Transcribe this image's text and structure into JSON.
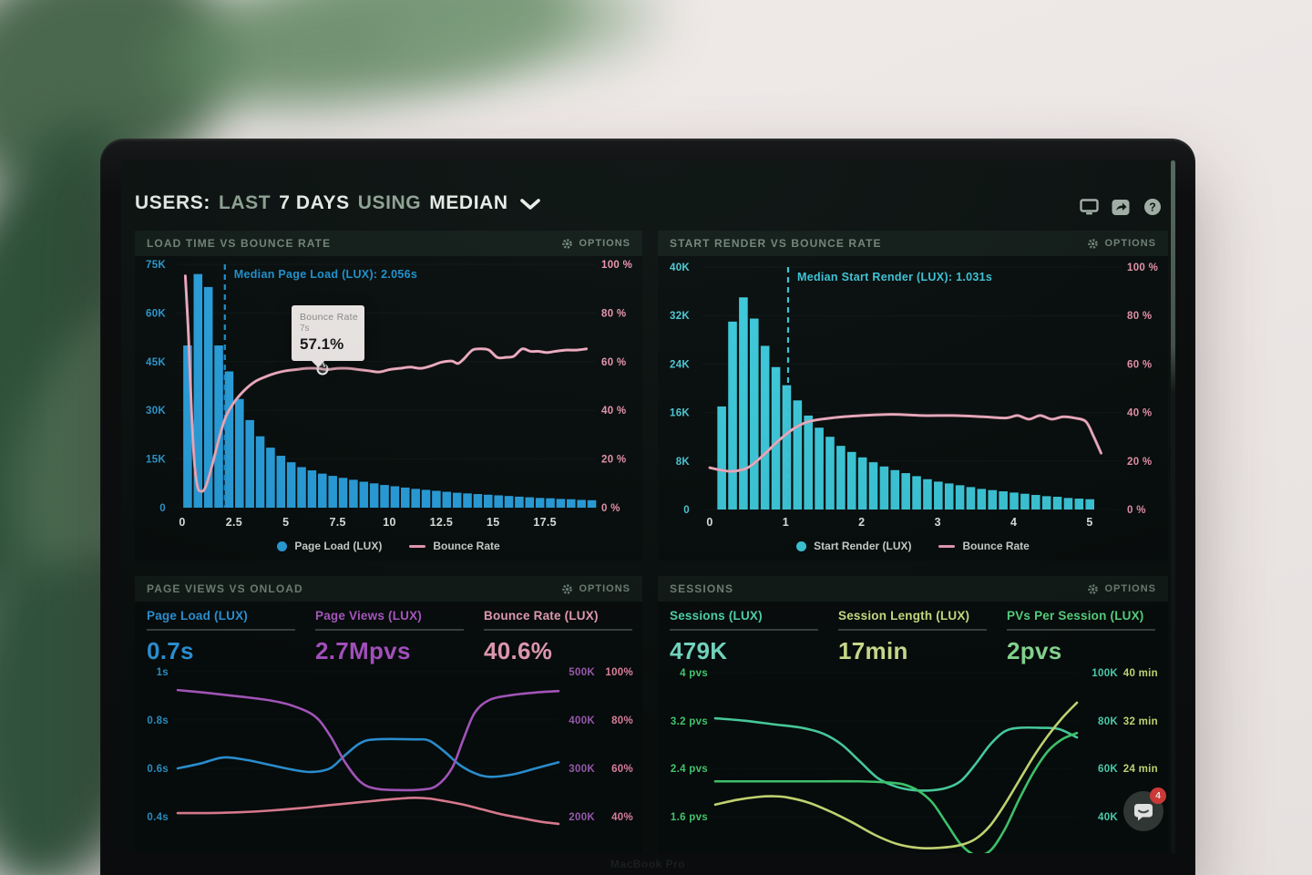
{
  "titlebar": {
    "segments": [
      {
        "text": "USERS:"
      },
      {
        "text": "LAST"
      },
      {
        "text": "7 DAYS"
      },
      {
        "text": "USING"
      },
      {
        "text": "MEDIAN"
      }
    ]
  },
  "ui": {
    "options_label": "OPTIONS",
    "icons": [
      "display",
      "share",
      "help"
    ]
  },
  "panels": {
    "loadTime": {
      "title": "LOAD TIME VS BOUNCE RATE"
    },
    "startRender": {
      "title": "START RENDER VS BOUNCE RATE"
    },
    "pageViews": {
      "title": "PAGE VIEWS VS ONLOAD",
      "stats": [
        {
          "label": "Page Load (LUX)",
          "value": "0.7s",
          "color": "#2f9fe8",
          "value_color": "#2f9fe8"
        },
        {
          "label": "Page Views (LUX)",
          "value": "2.7Mpvs",
          "color": "#b65fd0",
          "value_color": "#b558d2"
        },
        {
          "label": "Bounce Rate (LUX)",
          "value": "40.6%",
          "color": "#f5a8c0",
          "value_color": "#f7a8c2"
        }
      ]
    },
    "sessions": {
      "title": "SESSIONS",
      "stats": [
        {
          "label": "Sessions (LUX)",
          "value": "479K",
          "color": "#55e3b5",
          "value_color": "#7debd3"
        },
        {
          "label": "Session Length (LUX)",
          "value": "17min",
          "color": "#d9ee8a",
          "value_color": "#dff09a"
        },
        {
          "label": "PVs Per Session (LUX)",
          "value": "2pvs",
          "color": "#5ee487",
          "value_color": "#93ec9f"
        }
      ]
    }
  },
  "chat": {
    "badge": "4"
  },
  "bezel": {
    "label": "MacBook Pro"
  },
  "chart_data": [
    {
      "type": "bar",
      "title": "LOAD TIME VS BOUNCE RATE",
      "x": {
        "ticks": [
          0,
          2.5,
          5,
          7.5,
          10,
          12.5,
          15,
          17.5
        ],
        "range": [
          0,
          20
        ],
        "unit": "s"
      },
      "y_left": {
        "tick_labels": [
          "75K",
          "60K",
          "45K",
          "30K",
          "15K",
          "0"
        ],
        "range": [
          0,
          75000
        ],
        "color": "#2d9fd8"
      },
      "y_right": {
        "tick_labels": [
          "100 %",
          "80 %",
          "60 %",
          "40 %",
          "20 %",
          "0 %"
        ],
        "range": [
          0,
          100
        ],
        "color": "#f299b3"
      },
      "bars": {
        "series": "Page Load (LUX)",
        "color": "#2aa4e4",
        "x_start": 0.05,
        "x_step": 0.5,
        "bar_width": 0.42,
        "values_k": [
          50,
          72,
          68,
          50,
          42,
          33.5,
          27,
          22,
          18.5,
          16,
          14,
          12.5,
          11.5,
          10.5,
          9.8,
          9.2,
          8.6,
          8,
          7.5,
          7,
          6.6,
          6.2,
          5.8,
          5.5,
          5.2,
          4.9,
          4.6,
          4.4,
          4.2,
          4,
          3.8,
          3.6,
          3.4,
          3.2,
          3,
          2.9,
          2.7,
          2.6,
          2.4,
          2.3
        ]
      },
      "line": {
        "series": "Bounce Rate",
        "color": "#f2a2ba",
        "points_x_pct": [
          [
            0.15,
            96
          ],
          [
            0.3,
            72
          ],
          [
            0.45,
            40
          ],
          [
            0.6,
            18
          ],
          [
            0.75,
            9
          ],
          [
            0.9,
            7.5
          ],
          [
            1.05,
            8
          ],
          [
            1.2,
            11
          ],
          [
            1.5,
            20
          ],
          [
            1.8,
            30
          ],
          [
            2.1,
            38
          ],
          [
            2.5,
            44
          ],
          [
            3,
            49
          ],
          [
            3.5,
            52.5
          ],
          [
            4,
            54.5
          ],
          [
            4.5,
            56
          ],
          [
            5,
            57
          ],
          [
            5.5,
            57.5
          ],
          [
            6,
            58
          ],
          [
            6.5,
            58
          ],
          [
            7,
            57.5
          ],
          [
            7.5,
            58
          ],
          [
            8,
            58
          ],
          [
            8.5,
            57.5
          ],
          [
            9,
            57
          ],
          [
            9.5,
            56.5
          ],
          [
            10,
            57.5
          ],
          [
            10.5,
            58
          ],
          [
            11,
            58.5
          ],
          [
            11.5,
            58
          ],
          [
            12,
            59
          ],
          [
            12.5,
            60.5
          ],
          [
            13,
            61
          ],
          [
            13.3,
            60
          ],
          [
            13.6,
            62
          ],
          [
            14,
            65.5
          ],
          [
            14.4,
            66
          ],
          [
            14.8,
            65.5
          ],
          [
            15.2,
            62.5
          ],
          [
            15.6,
            62.5
          ],
          [
            16,
            63
          ],
          [
            16.4,
            66
          ],
          [
            16.8,
            65
          ],
          [
            17.2,
            65
          ],
          [
            17.6,
            64.5
          ],
          [
            18,
            65
          ],
          [
            18.5,
            65.5
          ],
          [
            19,
            65.5
          ],
          [
            19.5,
            66
          ]
        ]
      },
      "median": {
        "label": "Median Page Load (LUX): 2.056s",
        "value_s": 2.056,
        "color": "#1e96d6"
      },
      "tooltip": {
        "series": "Bounce Rate",
        "x": "7s",
        "value": "57.1%"
      }
    },
    {
      "type": "bar",
      "title": "START RENDER VS BOUNCE RATE",
      "x": {
        "ticks": [
          0,
          1,
          2,
          3,
          4,
          5
        ],
        "range": [
          0,
          5.2
        ],
        "unit": "s"
      },
      "y_left": {
        "tick_labels": [
          "40K",
          "32K",
          "24K",
          "16K",
          "8K",
          "0"
        ],
        "range": [
          0,
          40000
        ],
        "color": "#4fd0de"
      },
      "y_right": {
        "tick_labels": [
          "100 %",
          "80 %",
          "60 %",
          "40 %",
          "20 %",
          "0 %"
        ],
        "range": [
          0,
          100
        ],
        "color": "#f299b3"
      },
      "bars": {
        "series": "Start Render (LUX)",
        "color": "#3ecfe2",
        "x_start": 0.1,
        "x_step": 0.1425,
        "bar_width": 0.115,
        "values_k": [
          17,
          31,
          35,
          31.5,
          27,
          23.5,
          20.5,
          18,
          15.5,
          13.5,
          12,
          10.5,
          9.5,
          8.6,
          7.8,
          7.1,
          6.5,
          6,
          5.5,
          5,
          4.6,
          4.3,
          4,
          3.7,
          3.4,
          3.2,
          3,
          2.8,
          2.6,
          2.4,
          2.2,
          2.1,
          1.9,
          1.8,
          1.7
        ]
      },
      "line": {
        "series": "Bounce Rate",
        "color": "#f2a2ba",
        "points_x_pct": [
          [
            0,
            18
          ],
          [
            0.15,
            17
          ],
          [
            0.3,
            16.5
          ],
          [
            0.5,
            18
          ],
          [
            0.7,
            23
          ],
          [
            0.9,
            29
          ],
          [
            1.1,
            34
          ],
          [
            1.3,
            37
          ],
          [
            1.6,
            38.5
          ],
          [
            2,
            39.5
          ],
          [
            2.4,
            40
          ],
          [
            2.8,
            39.5
          ],
          [
            3.2,
            39.5
          ],
          [
            3.6,
            39
          ],
          [
            3.9,
            38.5
          ],
          [
            4.05,
            39.5
          ],
          [
            4.2,
            38
          ],
          [
            4.35,
            39.5
          ],
          [
            4.5,
            38
          ],
          [
            4.65,
            39
          ],
          [
            4.8,
            38.5
          ],
          [
            4.95,
            37
          ],
          [
            5.05,
            31
          ],
          [
            5.15,
            24
          ]
        ]
      },
      "median": {
        "label": "Median Start Render (LUX): 1.031s",
        "value_s": 1.031,
        "color": "#3fc9dd"
      }
    },
    {
      "type": "line",
      "title": "PAGE VIEWS VS ONLOAD",
      "axes": {
        "left_s": {
          "tick_labels": [
            "1s",
            "0.8s",
            "0.6s",
            "0.4s"
          ],
          "color": "#2d9fd8"
        },
        "right_k": {
          "tick_labels": [
            "500K",
            "400K",
            "300K",
            "200K"
          ],
          "color": "#a864c0"
        },
        "right_pct": {
          "tick_labels": [
            "100%",
            "80%",
            "60%",
            "40%"
          ],
          "color": "#f58fae"
        }
      },
      "series": [
        {
          "name": "Page Load (LUX)",
          "axis": "left_s",
          "color": "#2f9fe8",
          "points": [
            [
              0,
              0.6
            ],
            [
              6,
              0.62
            ],
            [
              12,
              0.645
            ],
            [
              18,
              0.635
            ],
            [
              24,
              0.615
            ],
            [
              30,
              0.595
            ],
            [
              35,
              0.585
            ],
            [
              40,
              0.6
            ],
            [
              44,
              0.655
            ],
            [
              48,
              0.705
            ],
            [
              52,
              0.72
            ],
            [
              62,
              0.72
            ],
            [
              66,
              0.715
            ],
            [
              70,
              0.67
            ],
            [
              74,
              0.615
            ],
            [
              78,
              0.58
            ],
            [
              82,
              0.565
            ],
            [
              88,
              0.575
            ],
            [
              94,
              0.6
            ],
            [
              100,
              0.625
            ]
          ]
        },
        {
          "name": "Page Views (LUX)",
          "axis": "right_k",
          "color": "#b65fd0",
          "points": [
            [
              0,
              462
            ],
            [
              8,
              456
            ],
            [
              16,
              449
            ],
            [
              24,
              441
            ],
            [
              30,
              430
            ],
            [
              36,
              408
            ],
            [
              40,
              368
            ],
            [
              44,
              312
            ],
            [
              48,
              272
            ],
            [
              52,
              258
            ],
            [
              58,
              255
            ],
            [
              64,
              256
            ],
            [
              68,
              264
            ],
            [
              72,
              300
            ],
            [
              75,
              360
            ],
            [
              78,
              415
            ],
            [
              82,
              442
            ],
            [
              88,
              452
            ],
            [
              94,
              457
            ],
            [
              100,
              460
            ]
          ]
        },
        {
          "name": "Bounce Rate (LUX)",
          "axis": "right_pct",
          "color": "#f2899f",
          "points": [
            [
              0,
              41.5
            ],
            [
              8,
              41.5
            ],
            [
              16,
              41.8
            ],
            [
              24,
              42.5
            ],
            [
              32,
              43.5
            ],
            [
              40,
              44.8
            ],
            [
              48,
              46
            ],
            [
              56,
              47.2
            ],
            [
              62,
              47.8
            ],
            [
              66,
              47.5
            ],
            [
              70,
              46.5
            ],
            [
              75,
              45
            ],
            [
              80,
              43
            ],
            [
              85,
              41
            ],
            [
              90,
              39.5
            ],
            [
              95,
              38
            ],
            [
              100,
              37
            ]
          ]
        }
      ]
    },
    {
      "type": "line",
      "title": "SESSIONS",
      "axes": {
        "left_pvs": {
          "tick_labels": [
            "4 pvs",
            "3.2 pvs",
            "2.4 pvs",
            "1.6 pvs"
          ],
          "color": "#4adf7c"
        },
        "right_k": {
          "tick_labels": [
            "100K",
            "80K",
            "60K",
            "40K"
          ],
          "color": "#57e3c2"
        },
        "right_min": {
          "tick_labels": [
            "40 min",
            "32 min",
            "24 min"
          ],
          "color": "#d7ee83"
        }
      },
      "series": [
        {
          "name": "Sessions (LUX)",
          "axis": "right_k",
          "color": "#4fe3ae",
          "points": [
            [
              0,
              81
            ],
            [
              8,
              80
            ],
            [
              16,
              78.5
            ],
            [
              24,
              77
            ],
            [
              30,
              74.5
            ],
            [
              35,
              70
            ],
            [
              40,
              63
            ],
            [
              45,
              56
            ],
            [
              50,
              52.5
            ],
            [
              55,
              51
            ],
            [
              60,
              51
            ],
            [
              64,
              52
            ],
            [
              68,
              55
            ],
            [
              72,
              62
            ],
            [
              76,
              70
            ],
            [
              80,
              75.5
            ],
            [
              84,
              77
            ],
            [
              90,
              77
            ],
            [
              95,
              76.5
            ],
            [
              100,
              73
            ]
          ]
        },
        {
          "name": "PVs Per Session (LUX)",
          "axis": "left_pvs",
          "color": "#45d977",
          "points": [
            [
              0,
              2.2
            ],
            [
              10,
              2.2
            ],
            [
              20,
              2.2
            ],
            [
              30,
              2.2
            ],
            [
              40,
              2.2
            ],
            [
              48,
              2.18
            ],
            [
              52,
              2.15
            ],
            [
              56,
              2.05
            ],
            [
              60,
              1.85
            ],
            [
              64,
              1.5
            ],
            [
              68,
              1.15
            ],
            [
              72,
              0.98
            ],
            [
              76,
              1.05
            ],
            [
              80,
              1.4
            ],
            [
              84,
              1.9
            ],
            [
              88,
              2.35
            ],
            [
              92,
              2.7
            ],
            [
              96,
              2.9
            ],
            [
              100,
              3
            ]
          ]
        },
        {
          "name": "Session Length (LUX)",
          "axis": "right_min",
          "color": "#d9ee7f",
          "points": [
            [
              0,
              18
            ],
            [
              6,
              18.8
            ],
            [
              12,
              19.3
            ],
            [
              16,
              19.4
            ],
            [
              20,
              19.2
            ],
            [
              26,
              18.3
            ],
            [
              32,
              16.8
            ],
            [
              38,
              15
            ],
            [
              44,
              13
            ],
            [
              50,
              11.5
            ],
            [
              56,
              10.8
            ],
            [
              62,
              10.8
            ],
            [
              68,
              11.3
            ],
            [
              72,
              12.3
            ],
            [
              76,
              14.5
            ],
            [
              80,
              18
            ],
            [
              84,
              22
            ],
            [
              88,
              26
            ],
            [
              92,
              29.5
            ],
            [
              96,
              32.5
            ],
            [
              100,
              35
            ]
          ]
        }
      ]
    }
  ]
}
